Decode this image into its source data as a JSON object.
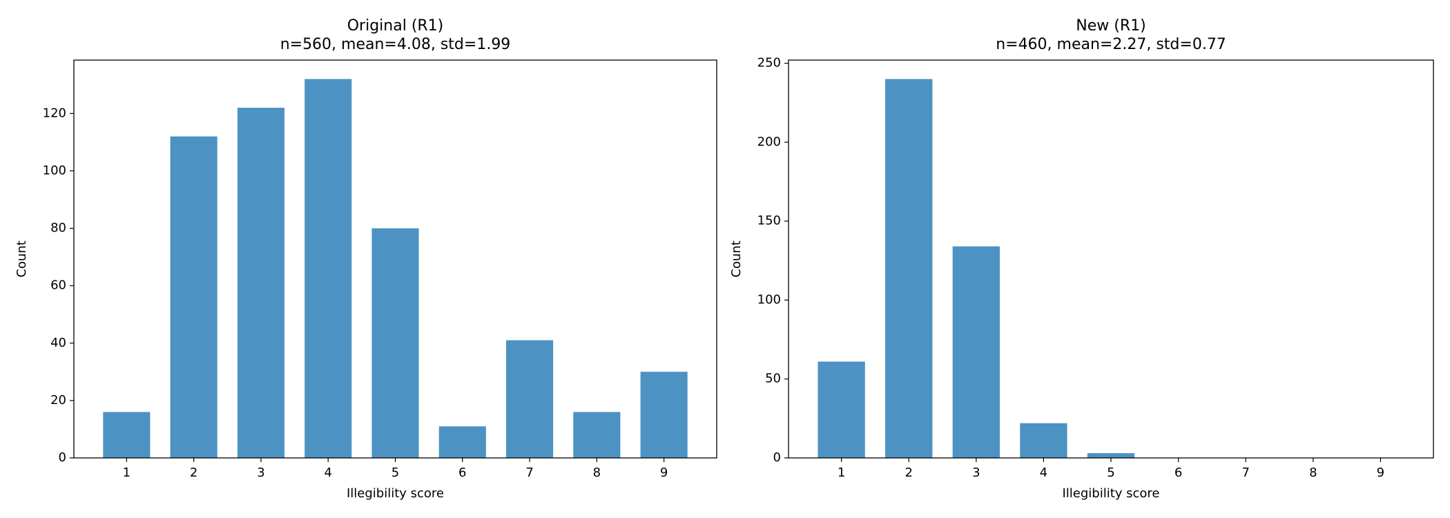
{
  "chart_data": [
    {
      "type": "bar",
      "title": "Original (R1)",
      "subtitle": "n=560, mean=4.08, std=1.99",
      "x_label": "Illegibility score",
      "y_label": "Count",
      "x": [
        1,
        2,
        3,
        4,
        5,
        6,
        7,
        8,
        9
      ],
      "values": [
        16,
        112,
        122,
        132,
        80,
        11,
        41,
        16,
        30
      ],
      "color": "#4c92c3",
      "xlim": [
        0.215,
        9.785
      ],
      "xticks": [
        1,
        2,
        3,
        4,
        5,
        6,
        7,
        8,
        9
      ],
      "ylim": [
        0,
        138.6
      ],
      "yticks": [
        0,
        20,
        40,
        60,
        80,
        100,
        120
      ]
    },
    {
      "type": "bar",
      "title": "New (R1)",
      "subtitle": "n=460, mean=2.27, std=0.77",
      "x_label": "Illegibility score",
      "y_label": "Count",
      "x": [
        1,
        2,
        3,
        4,
        5,
        6,
        7,
        8,
        9
      ],
      "values": [
        61,
        240,
        134,
        22,
        3,
        0,
        0,
        0,
        0
      ],
      "color": "#4c92c3",
      "xlim": [
        0.215,
        9.785
      ],
      "xticks": [
        1,
        2,
        3,
        4,
        5,
        6,
        7,
        8,
        9
      ],
      "ylim": [
        0,
        252
      ],
      "yticks": [
        0,
        50,
        100,
        150,
        200,
        250
      ]
    }
  ]
}
